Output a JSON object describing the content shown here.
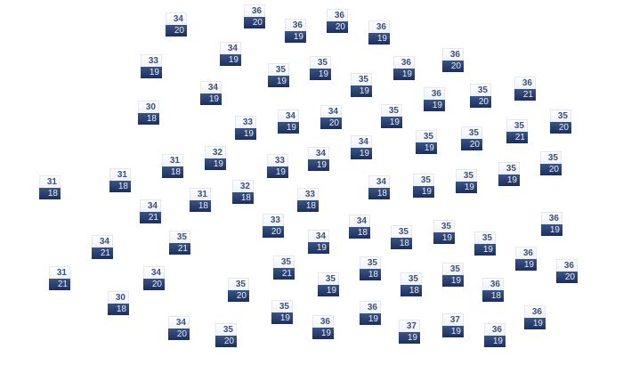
{
  "colors": {
    "label_top_bg": "#f4f7fc",
    "label_top_text": "#3a4f7d",
    "label_bottom_bg": "#233a6a",
    "label_bottom_text": "#e9eef7"
  },
  "markers": [
    {
      "top": "34",
      "bottom": "20"
    },
    {
      "top": "36",
      "bottom": "20"
    },
    {
      "top": "36",
      "bottom": "19"
    },
    {
      "top": "36",
      "bottom": "20"
    },
    {
      "top": "36",
      "bottom": "19"
    },
    {
      "top": "34",
      "bottom": "19"
    },
    {
      "top": "33",
      "bottom": "19"
    },
    {
      "top": "35",
      "bottom": "19"
    },
    {
      "top": "35",
      "bottom": "19"
    },
    {
      "top": "35",
      "bottom": "19"
    },
    {
      "top": "36",
      "bottom": "19"
    },
    {
      "top": "36",
      "bottom": "20"
    },
    {
      "top": "34",
      "bottom": "19"
    },
    {
      "top": "30",
      "bottom": "18"
    },
    {
      "top": "36",
      "bottom": "19"
    },
    {
      "top": "35",
      "bottom": "20"
    },
    {
      "top": "36",
      "bottom": "21"
    },
    {
      "top": "33",
      "bottom": "19"
    },
    {
      "top": "34",
      "bottom": "19"
    },
    {
      "top": "34",
      "bottom": "20"
    },
    {
      "top": "35",
      "bottom": "19"
    },
    {
      "top": "35",
      "bottom": "20"
    },
    {
      "top": "35",
      "bottom": "19"
    },
    {
      "top": "35",
      "bottom": "20"
    },
    {
      "top": "35",
      "bottom": "21"
    },
    {
      "top": "34",
      "bottom": "19"
    },
    {
      "top": "32",
      "bottom": "19"
    },
    {
      "top": "31",
      "bottom": "18"
    },
    {
      "top": "31",
      "bottom": "18"
    },
    {
      "top": "33",
      "bottom": "19"
    },
    {
      "top": "34",
      "bottom": "19"
    },
    {
      "top": "35",
      "bottom": "20"
    },
    {
      "top": "35",
      "bottom": "19"
    },
    {
      "top": "31",
      "bottom": "18"
    },
    {
      "top": "34",
      "bottom": "18"
    },
    {
      "top": "35",
      "bottom": "19"
    },
    {
      "top": "35",
      "bottom": "19"
    },
    {
      "top": "32",
      "bottom": "18"
    },
    {
      "top": "31",
      "bottom": "18"
    },
    {
      "top": "34",
      "bottom": "21"
    },
    {
      "top": "33",
      "bottom": "18"
    },
    {
      "top": "33",
      "bottom": "20"
    },
    {
      "top": "34",
      "bottom": "18"
    },
    {
      "top": "35",
      "bottom": "18"
    },
    {
      "top": "35",
      "bottom": "19"
    },
    {
      "top": "34",
      "bottom": "19"
    },
    {
      "top": "35",
      "bottom": "19"
    },
    {
      "top": "36",
      "bottom": "19"
    },
    {
      "top": "34",
      "bottom": "21"
    },
    {
      "top": "35",
      "bottom": "21"
    },
    {
      "top": "36",
      "bottom": "19"
    },
    {
      "top": "36",
      "bottom": "20"
    },
    {
      "top": "35",
      "bottom": "21"
    },
    {
      "top": "35",
      "bottom": "18"
    },
    {
      "top": "34",
      "bottom": "20"
    },
    {
      "top": "31",
      "bottom": "21"
    },
    {
      "top": "35",
      "bottom": "19"
    },
    {
      "top": "35",
      "bottom": "20"
    },
    {
      "top": "35",
      "bottom": "19"
    },
    {
      "top": "35",
      "bottom": "18"
    },
    {
      "top": "36",
      "bottom": "18"
    },
    {
      "top": "30",
      "bottom": "18"
    },
    {
      "top": "35",
      "bottom": "19"
    },
    {
      "top": "36",
      "bottom": "19"
    },
    {
      "top": "36",
      "bottom": "19"
    },
    {
      "top": "34",
      "bottom": "20"
    },
    {
      "top": "35",
      "bottom": "20"
    },
    {
      "top": "36",
      "bottom": "19"
    },
    {
      "top": "37",
      "bottom": "19"
    },
    {
      "top": "37",
      "bottom": "19"
    },
    {
      "top": "36",
      "bottom": "19"
    }
  ]
}
